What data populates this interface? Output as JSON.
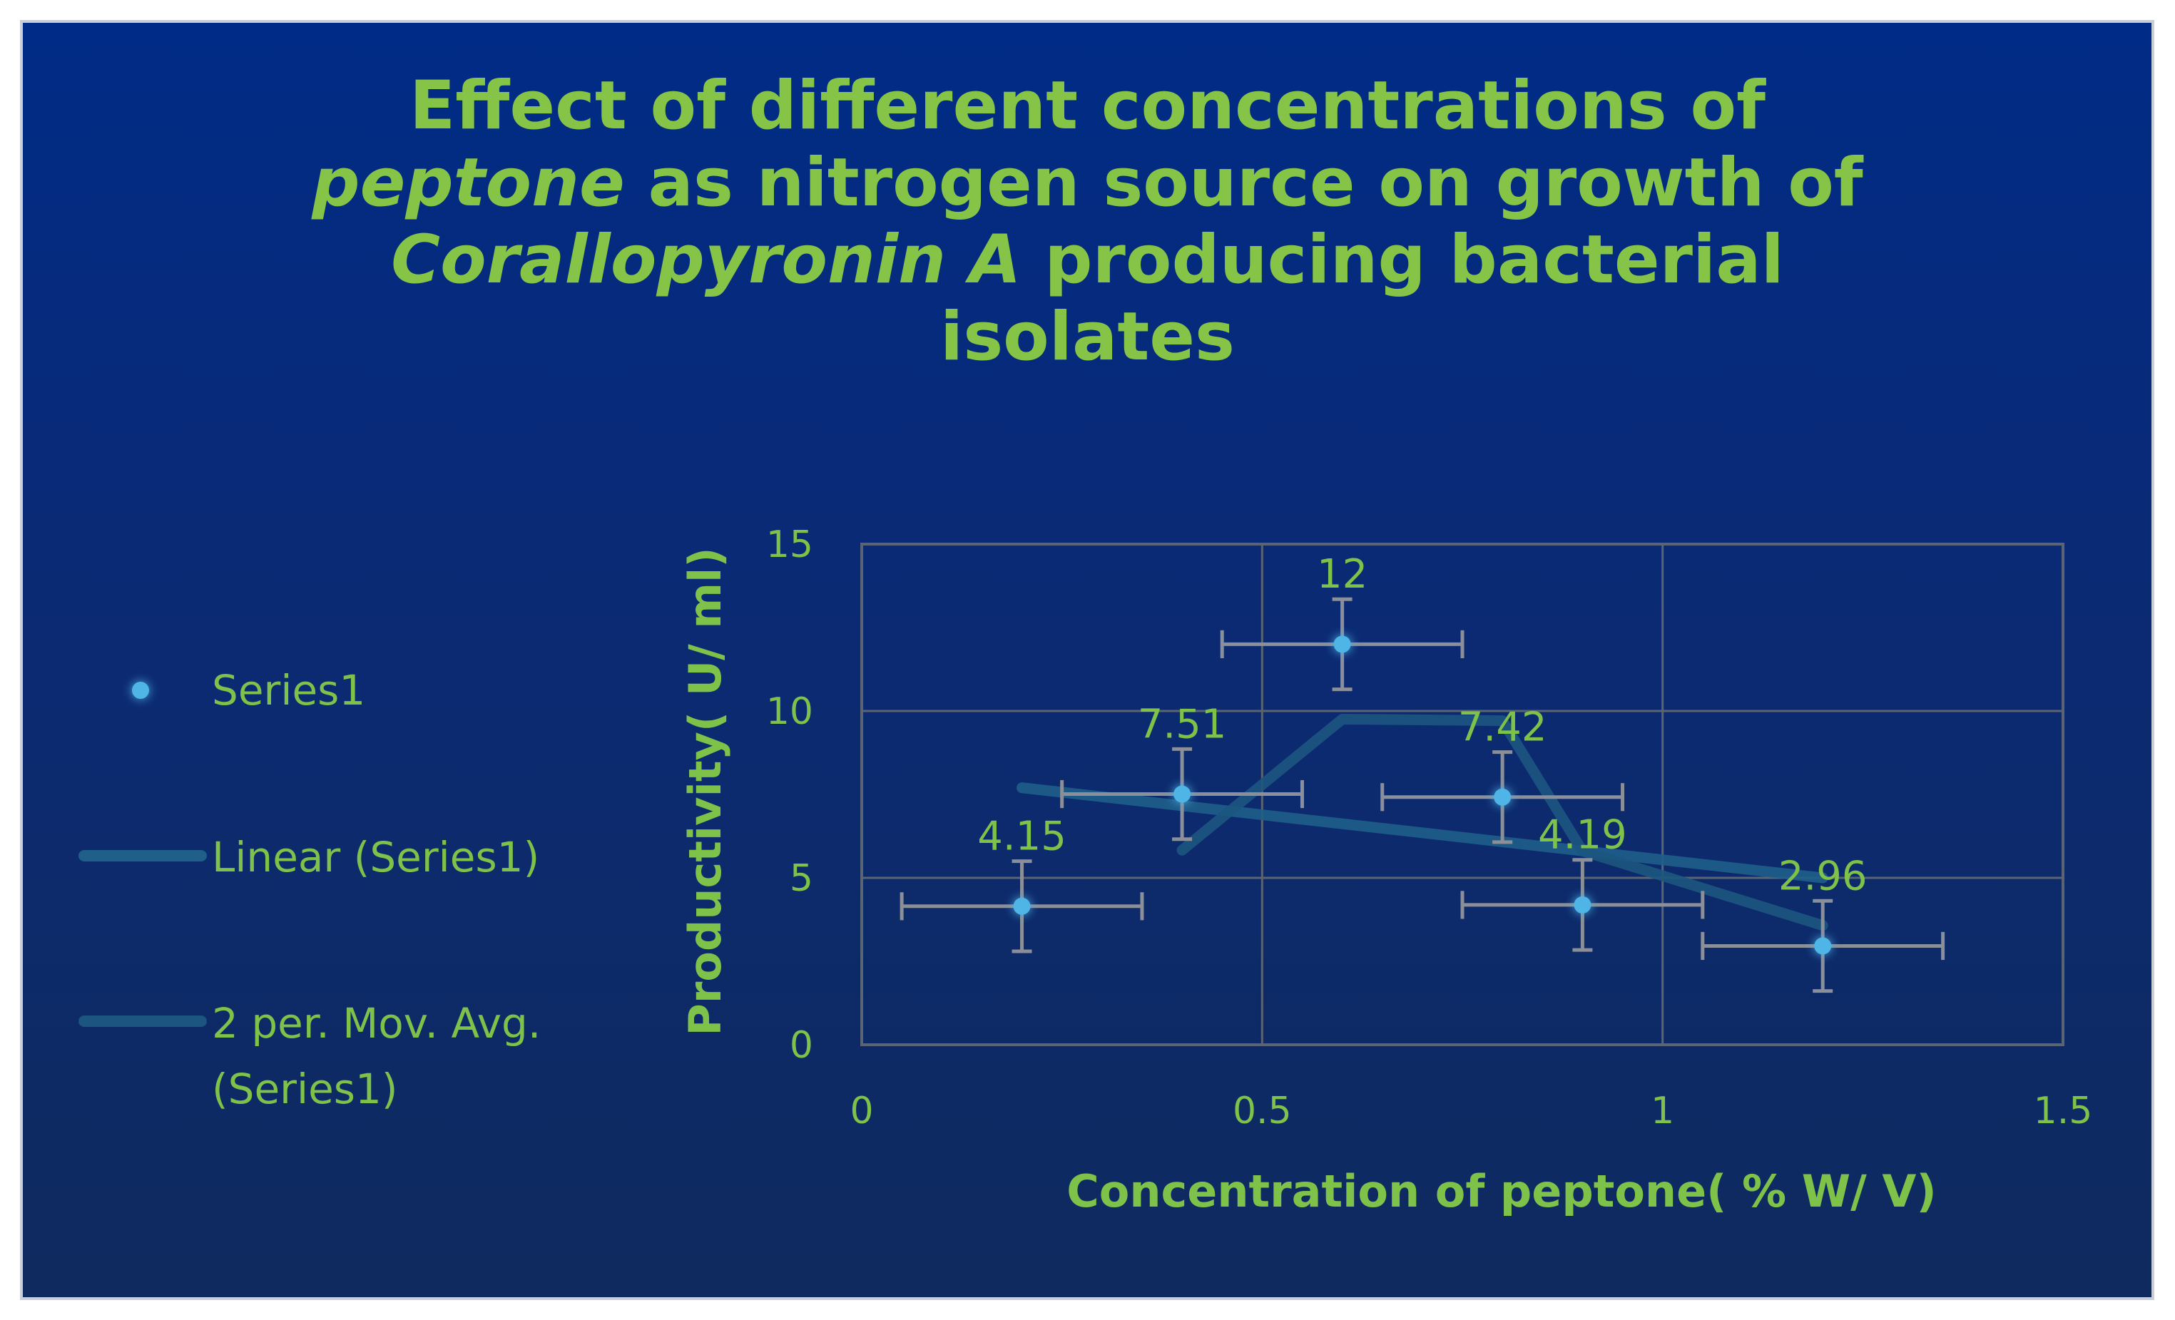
{
  "chart_data": {
    "type": "scatter",
    "title": {
      "line1": "Effect of different concentrations of",
      "line2_italic": "peptone",
      "line2_rest": " as nitrogen source on growth of",
      "line3_italic": "Corallopyronin A",
      "line3_rest": " producing bacterial",
      "line4": "isolates"
    },
    "xlabel": "Concentration of peptone( % W/ V)",
    "ylabel": "Productivity( U/ ml)",
    "xlim": [
      0,
      1.5
    ],
    "ylim": [
      0,
      15
    ],
    "x_ticks": [
      0,
      0.5,
      1,
      1.5
    ],
    "x_tick_labels": [
      "0",
      "0.5",
      "1",
      "1.5"
    ],
    "y_ticks": [
      0,
      5,
      10,
      15
    ],
    "y_tick_labels": [
      "0",
      "5",
      "10",
      "15"
    ],
    "grid": true,
    "series": [
      {
        "name": "Series1",
        "x": [
          0.2,
          0.4,
          0.6,
          0.8,
          0.9,
          1.2
        ],
        "y": [
          4.15,
          7.51,
          12,
          7.42,
          4.19,
          2.96
        ],
        "labels": [
          "4.15",
          "7.51",
          "12",
          "7.42",
          "4.19",
          "2.96"
        ],
        "x_error": 0.15,
        "y_error": 1.35,
        "color": "#4fb4e6"
      }
    ],
    "trendlines": [
      {
        "name": "Linear (Series1)",
        "type": "linear",
        "x_range": [
          0.2,
          1.2
        ],
        "y_start": 7.7,
        "y_end": 5.0,
        "color": "#1f5f8a"
      },
      {
        "name": "2 per. Mov. Avg. (Series1)",
        "type": "moving_average",
        "period": 2,
        "color": "#1c5580"
      }
    ],
    "legend": {
      "position": "left",
      "entries": [
        "Series1",
        "Linear (Series1)",
        "2 per. Mov. Avg.",
        "(Series1)"
      ]
    }
  },
  "colors": {
    "text_green": "#7fc24a",
    "grid": "#5b6472",
    "error_bar": "#8a8f99"
  }
}
